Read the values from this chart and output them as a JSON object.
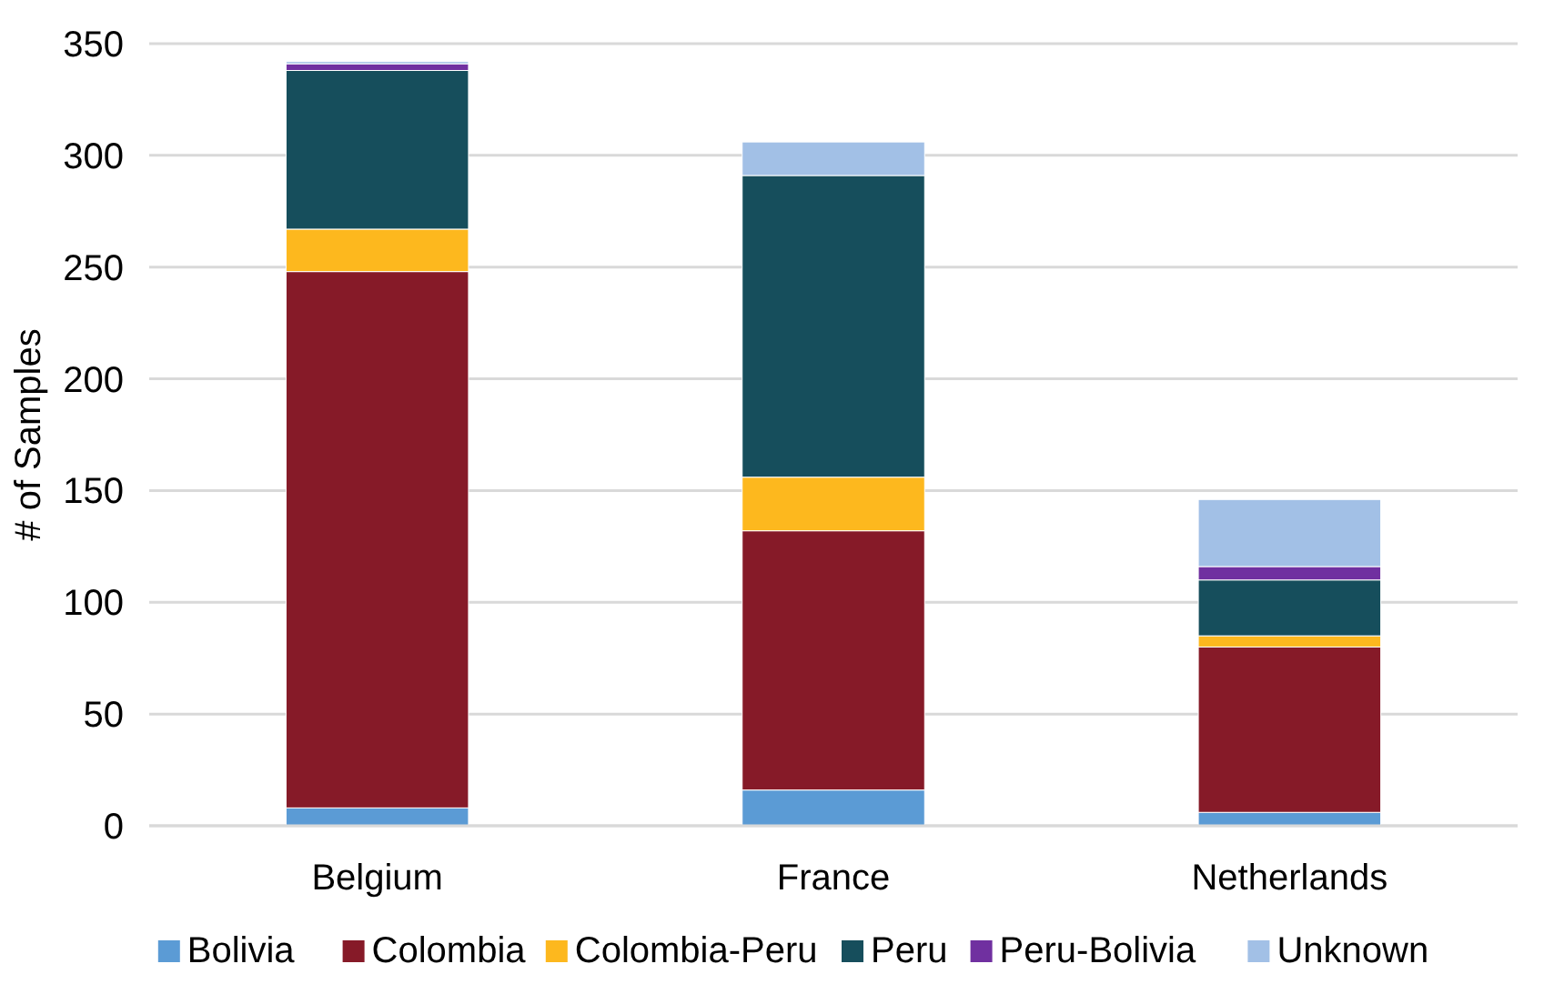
{
  "chart_data": {
    "type": "bar",
    "stacked": true,
    "ylabel": "# of Samples",
    "categories": [
      "Belgium",
      "France",
      "Netherlands"
    ],
    "series": [
      {
        "name": "Bolivia",
        "color": "#5b9bd5",
        "values": [
          8,
          16,
          6
        ]
      },
      {
        "name": "Colombia",
        "color": "#861a28",
        "values": [
          240,
          116,
          74
        ]
      },
      {
        "name": "Colombia-Peru",
        "color": "#fdb81e",
        "values": [
          19,
          24,
          5
        ]
      },
      {
        "name": "Peru",
        "color": "#164e5c",
        "values": [
          71,
          135,
          25
        ]
      },
      {
        "name": "Peru-Bolivia",
        "color": "#7030a0",
        "values": [
          3,
          0,
          6
        ]
      },
      {
        "name": "Unknown",
        "color": "#a2c0e6",
        "values": [
          1,
          15,
          30
        ]
      }
    ],
    "ylim": [
      0,
      350
    ],
    "yticks": [
      0,
      50,
      100,
      150,
      200,
      250,
      300,
      350
    ],
    "grid": "y",
    "legend": "bottom"
  }
}
